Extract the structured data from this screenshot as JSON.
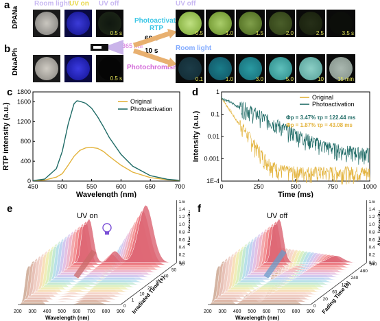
{
  "panels": {
    "a": {
      "letter": "a",
      "sample": "DPANa"
    },
    "b": {
      "letter": "b",
      "sample": "DNaAPh"
    },
    "c": {
      "letter": "c"
    },
    "d": {
      "letter": "d"
    },
    "e": {
      "letter": "e"
    },
    "f": {
      "letter": "f"
    }
  },
  "top": {
    "col_room_light": "Room light",
    "col_uv_on": "UV on",
    "col_uv_off": "UV off",
    "uv_off_header": "UV off",
    "room_light_header": "Room light",
    "photoactivated_rtp": "Photoactivated RTP",
    "t60": "60 s",
    "t10": "10 s",
    "wavelength_365": "365 nm",
    "photochromism": "Photochromism",
    "a_small_time": "0.5 s",
    "b_small_time": "0.5 s",
    "a_times": [
      "0.5",
      "1.0",
      "1.5",
      "2.0",
      "2.5",
      "3.5 s"
    ],
    "b_times": [
      "0.1",
      "1.0",
      "3.0",
      "5.0",
      "10",
      "15 min"
    ],
    "colors": {
      "uv_off": "#c9b9f2",
      "photoactivated": "#3ec7e6",
      "photochromism": "#d46cd9",
      "room_light": "#7fa9ff"
    }
  },
  "chart_c": {
    "type": "line",
    "xlabel": "Wavelength (nm)",
    "ylabel": "RTP intensity (a.u.)",
    "xlim": [
      450,
      700
    ],
    "ylim": [
      0,
      1800
    ],
    "xticks": [
      450,
      500,
      550,
      600,
      650,
      700
    ],
    "yticks": [
      0,
      400,
      800,
      1200,
      1600
    ],
    "ytick_labels": [
      "0",
      "400",
      "800",
      "1200",
      "1600"
    ],
    "top_tick": "1800",
    "legend": [
      "Original",
      "Photoactivation"
    ],
    "series": [
      {
        "name": "Original",
        "color": "#e3b33c",
        "x": [
          450,
          470,
          490,
          500,
          510,
          520,
          530,
          540,
          550,
          560,
          570,
          580,
          600,
          620,
          650,
          680,
          700
        ],
        "y": [
          8,
          20,
          80,
          150,
          320,
          500,
          620,
          670,
          680,
          660,
          600,
          500,
          320,
          180,
          70,
          25,
          10
        ]
      },
      {
        "name": "Photoactivation",
        "color": "#1f6b66",
        "x": [
          450,
          470,
          490,
          500,
          510,
          520,
          525,
          530,
          540,
          550,
          560,
          570,
          580,
          600,
          620,
          650,
          680,
          700
        ],
        "y": [
          10,
          40,
          250,
          600,
          1150,
          1560,
          1620,
          1610,
          1570,
          1470,
          1300,
          1100,
          880,
          540,
          300,
          110,
          35,
          15
        ]
      }
    ]
  },
  "chart_d": {
    "type": "line",
    "xlabel": "Time (ms)",
    "ylabel": "Intensity (a.u.)",
    "xlim": [
      0,
      1000
    ],
    "yscale": "log",
    "yticks": [
      1,
      0.1,
      0.01,
      0.001,
      0.0001
    ],
    "ytick_labels": [
      "1",
      "0.1",
      "0.01",
      "0.001",
      "1E-4"
    ],
    "xticks": [
      0,
      250,
      500,
      750,
      1000
    ],
    "legend": [
      "Original",
      "Photoactivation"
    ],
    "annotations": [
      {
        "text": "Φp = 3.47%  τp = 122.44 ms",
        "color": "#1f6b66"
      },
      {
        "text": "Φp = 1.87%  τp = 43.08 ms",
        "color": "#e3b33c"
      }
    ],
    "series": [
      {
        "name": "Original",
        "color": "#e3b33c",
        "tau": 43.08,
        "floor": 0.0002
      },
      {
        "name": "Photoactivation",
        "color": "#1f6b66",
        "tau": 122.44,
        "floor": 0.0012
      }
    ]
  },
  "chart_e": {
    "type": "area",
    "condition": "UV on",
    "xlabel": "Wavelength (nm)",
    "zlabel": "Abs. Intensity",
    "depth_label": "Irradiated Time (s)",
    "xticks": [
      "200",
      "300",
      "400",
      "500",
      "600",
      "700",
      "800",
      "900"
    ],
    "zticks": [
      "0.0",
      "0.2",
      "0.4",
      "0.6",
      "0.8",
      "1.0",
      "1.2",
      "1.4",
      "1.6",
      "1.8"
    ],
    "depth_ticks": [
      "0",
      "1",
      "10",
      "20",
      "30",
      "40",
      "50",
      "60"
    ]
  },
  "chart_f": {
    "type": "area",
    "condition": "UV off",
    "xlabel": "Wavelength (nm)",
    "zlabel": "Abs. Intensity",
    "depth_label": "Fading Time (s)",
    "xticks": [
      "200",
      "300",
      "400",
      "500",
      "600",
      "700",
      "800",
      "900"
    ],
    "zticks": [
      "0.0",
      "0.2",
      "0.4",
      "0.6",
      "0.8",
      "1.0",
      "1.2",
      "1.4",
      "1.6",
      "1.8"
    ],
    "depth_ticks": [
      "0",
      "20",
      "60",
      "120",
      "240",
      "480",
      "840"
    ]
  }
}
